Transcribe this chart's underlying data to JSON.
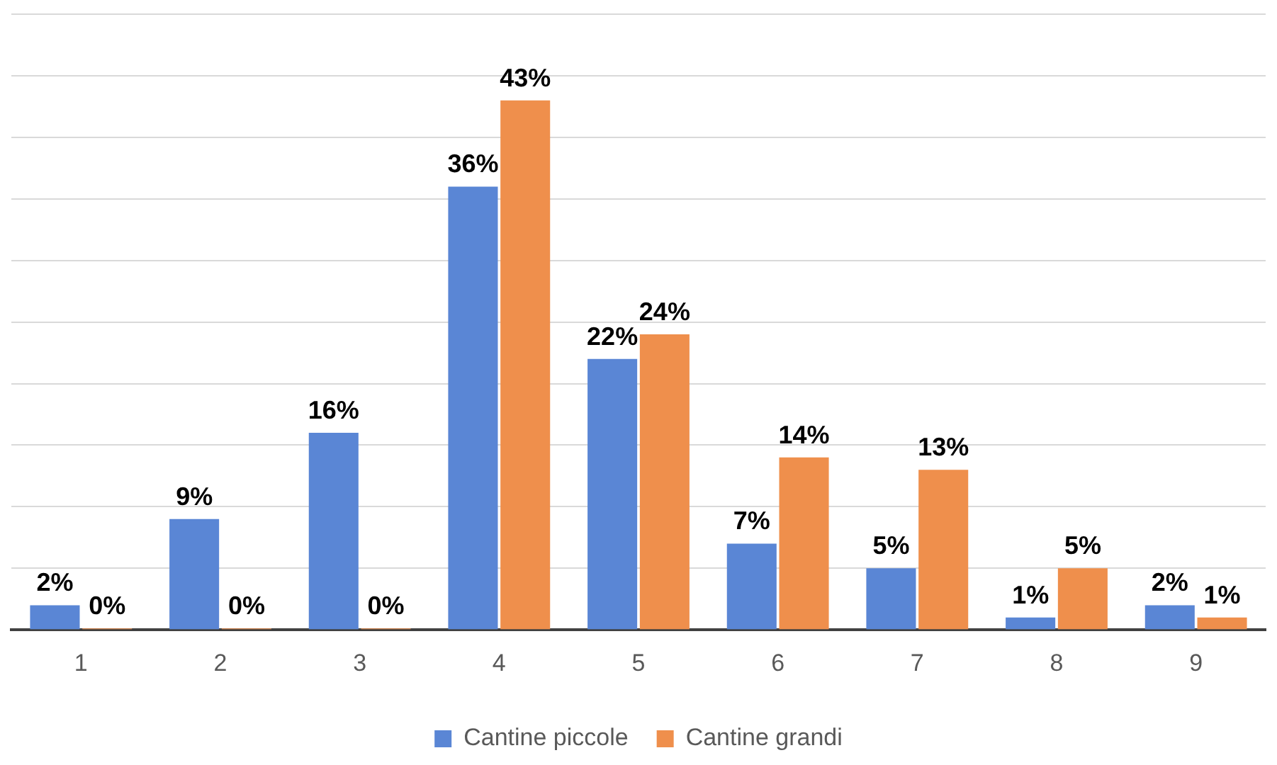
{
  "chart_data": {
    "type": "bar",
    "categories": [
      "1",
      "2",
      "3",
      "4",
      "5",
      "6",
      "7",
      "8",
      "9"
    ],
    "series": [
      {
        "name": "Cantine piccole",
        "color": "#5a86d5",
        "values": [
          2,
          9,
          16,
          36,
          22,
          7,
          5,
          1,
          2
        ],
        "value_labels": [
          "2%",
          "9%",
          "16%",
          "36%",
          "22%",
          "7%",
          "5%",
          "1%",
          "2%"
        ]
      },
      {
        "name": "Cantine grandi",
        "color": "#ef8f4c",
        "values": [
          0,
          0,
          0,
          43,
          24,
          14,
          13,
          5,
          1
        ],
        "value_labels": [
          "0%",
          "0%",
          "0%",
          "43%",
          "24%",
          "14%",
          "13%",
          "5%",
          "1%"
        ]
      }
    ],
    "ylim": [
      0,
      50
    ],
    "yticks": [
      {
        "value": 0,
        "label": null
      },
      {
        "value": 5,
        "label": null
      },
      {
        "value": 10,
        "label": null
      },
      {
        "value": 15,
        "label": null
      },
      {
        "value": 20,
        "label": null
      },
      {
        "value": 25,
        "label": null
      },
      {
        "value": 30,
        "label": null
      },
      {
        "value": 35,
        "label": null
      },
      {
        "value": 40,
        "label": null
      },
      {
        "value": 45,
        "label": null
      },
      {
        "value": 50,
        "label": null
      }
    ],
    "grid": "y",
    "legend": "bottom",
    "tick_labels": "x"
  }
}
